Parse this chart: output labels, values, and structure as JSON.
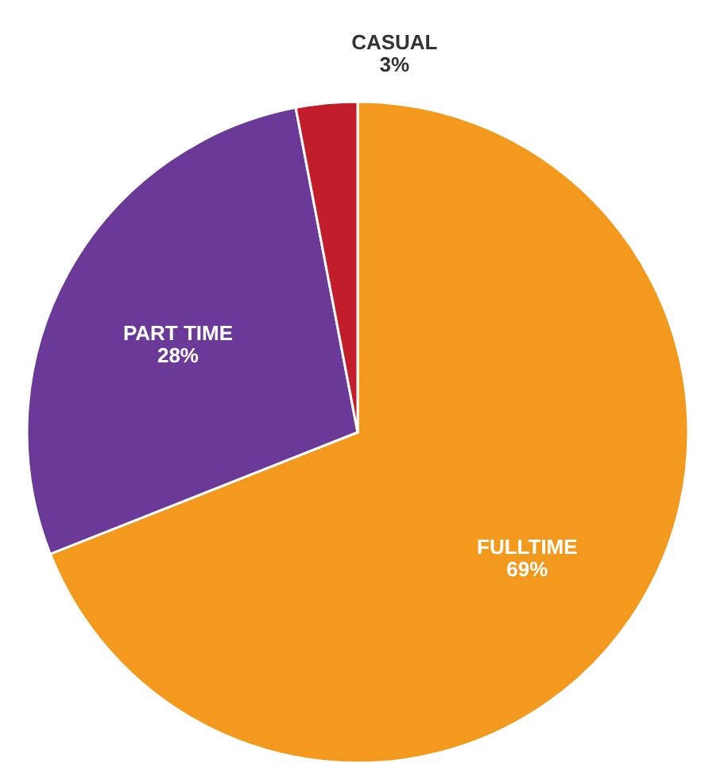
{
  "chart_data": {
    "type": "pie",
    "categories": [
      "FULLTIME",
      "PART TIME",
      "CASUAL"
    ],
    "values": [
      69,
      28,
      3
    ],
    "colors": [
      "#f39a1e",
      "#6b3a98",
      "#c21d2b"
    ],
    "value_labels": [
      "69%",
      "28%",
      "3%"
    ],
    "legend": false
  }
}
